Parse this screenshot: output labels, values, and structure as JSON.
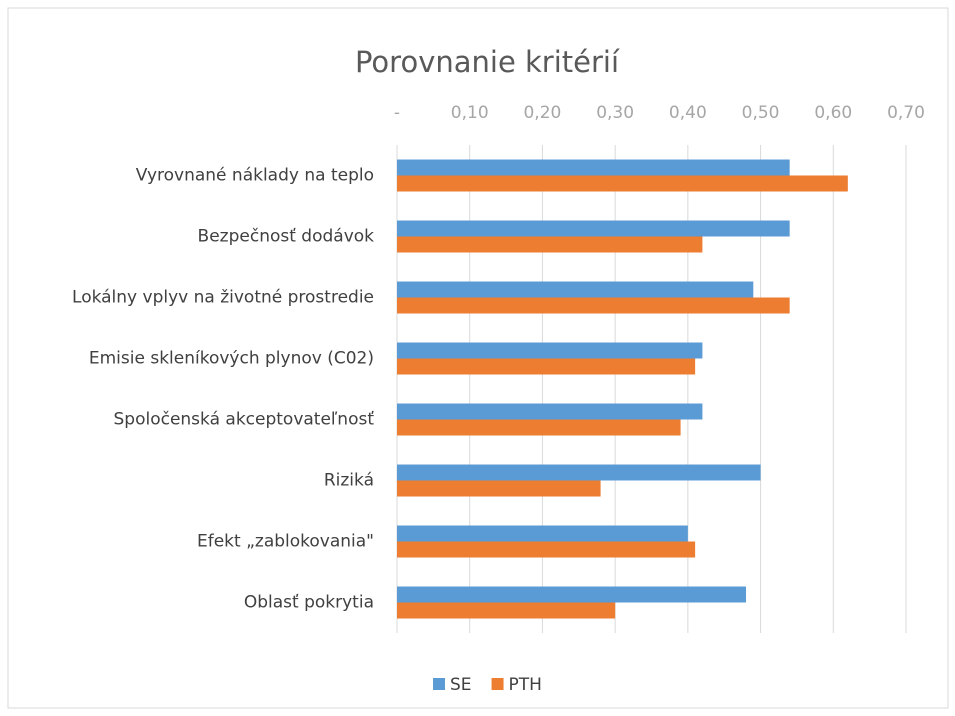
{
  "chart_data": {
    "type": "barh",
    "title": "Porovnanie kritérií",
    "categories": [
      "Vyrovnané náklady na teplo",
      "Bezpečnosť dodávok",
      "Lokálny vplyv na životné prostredie",
      "Emisie skleníkových plynov (C02)",
      "Spoločenská akceptovateľnosť",
      "Riziká",
      "Efekt „zablokovania\"",
      "Oblasť pokrytia"
    ],
    "series": [
      {
        "name": "SE",
        "color": "#5b9bd5",
        "values": [
          0.54,
          0.54,
          0.49,
          0.42,
          0.42,
          0.5,
          0.4,
          0.48
        ]
      },
      {
        "name": "PTH",
        "color": "#ed7d31",
        "values": [
          0.62,
          0.42,
          0.54,
          0.41,
          0.39,
          0.28,
          0.41,
          0.3
        ]
      }
    ],
    "xlim": [
      0,
      0.7
    ],
    "xticks": [
      {
        "value": 0,
        "label": "-"
      },
      {
        "value": 0.1,
        "label": "0,10"
      },
      {
        "value": 0.2,
        "label": "0,20"
      },
      {
        "value": 0.3,
        "label": "0,30"
      },
      {
        "value": 0.4,
        "label": "0,40"
      },
      {
        "value": 0.5,
        "label": "0,50"
      },
      {
        "value": 0.6,
        "label": "0,60"
      },
      {
        "value": 0.7,
        "label": "0,70"
      }
    ],
    "grid": true,
    "legend": "bottom"
  }
}
